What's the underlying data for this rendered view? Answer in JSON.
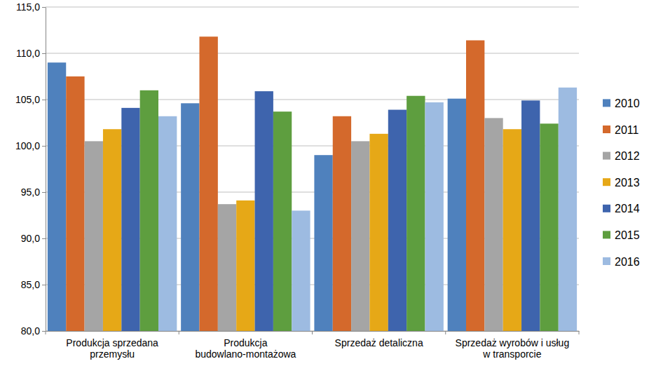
{
  "chart_data": {
    "type": "bar",
    "categories": [
      "Produkcja sprzedana przemysłu",
      "Produkcja budowlano-montażowa",
      "Sprzedaż detaliczna",
      "Sprzedaż wyrobów i usług w transporcie"
    ],
    "series": [
      {
        "name": "2010",
        "color": "#4f81bd",
        "values": [
          109.0,
          104.6,
          99.0,
          105.1
        ]
      },
      {
        "name": "2011",
        "color": "#d4692c",
        "values": [
          107.5,
          111.8,
          103.2,
          111.4
        ]
      },
      {
        "name": "2012",
        "color": "#a5a5a5",
        "values": [
          100.5,
          93.7,
          100.5,
          103.0
        ]
      },
      {
        "name": "2013",
        "color": "#e6a817",
        "values": [
          101.8,
          94.1,
          101.3,
          101.8
        ]
      },
      {
        "name": "2014",
        "color": "#3e64ad",
        "values": [
          104.1,
          105.9,
          103.9,
          104.9
        ]
      },
      {
        "name": "2015",
        "color": "#5e9e3f",
        "values": [
          106.0,
          103.7,
          105.4,
          102.4
        ]
      },
      {
        "name": "2016",
        "color": "#9dbbe1",
        "values": [
          103.2,
          93.0,
          104.7,
          106.3
        ]
      }
    ],
    "ylim": [
      80,
      115
    ],
    "yticks": [
      {
        "value": 80,
        "label": "80,0"
      },
      {
        "value": 85,
        "label": "85,0"
      },
      {
        "value": 90,
        "label": "90,0"
      },
      {
        "value": 95,
        "label": "95,0"
      },
      {
        "value": 100,
        "label": "100,0"
      },
      {
        "value": 105,
        "label": "105,0"
      },
      {
        "value": 110,
        "label": "110,0"
      },
      {
        "value": 115,
        "label": "115,0"
      }
    ],
    "grid": true,
    "legend": "right"
  }
}
